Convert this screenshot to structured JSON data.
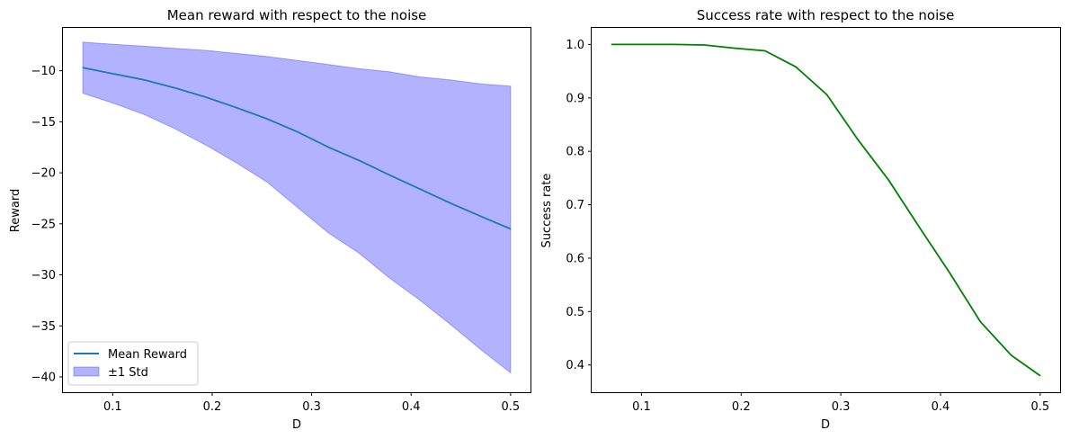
{
  "chart_data": [
    {
      "type": "line",
      "title": "Mean reward with respect to the noise",
      "xlabel": "D",
      "ylabel": "Reward",
      "xlim": [
        0.05,
        0.52
      ],
      "ylim": [
        -41.5,
        -5.8
      ],
      "xticks": [
        0.1,
        0.2,
        0.3,
        0.4,
        0.5
      ],
      "xtick_labels": [
        "0.1",
        "0.2",
        "0.3",
        "0.4",
        "0.5"
      ],
      "yticks": [
        -40,
        -35,
        -30,
        -25,
        -20,
        -15,
        -10
      ],
      "ytick_labels": [
        "−40",
        "−35",
        "−30",
        "−25",
        "−20",
        "−15",
        "−10"
      ],
      "grid": false,
      "legend_position": "lower-left",
      "x": [
        0.07,
        0.101,
        0.132,
        0.163,
        0.194,
        0.224,
        0.255,
        0.286,
        0.317,
        0.348,
        0.378,
        0.409,
        0.44,
        0.471,
        0.5
      ],
      "series": [
        {
          "name": "Mean Reward",
          "color": "#1f77b4",
          "values": [
            -9.7,
            -10.3,
            -10.9,
            -11.7,
            -12.6,
            -13.6,
            -14.7,
            -16.0,
            -17.5,
            -18.8,
            -20.2,
            -21.6,
            -23.0,
            -24.3,
            -25.5
          ]
        }
      ],
      "band": {
        "name": "±1 Std",
        "color": "#0000ff",
        "lower": [
          -12.2,
          -13.2,
          -14.3,
          -15.7,
          -17.3,
          -19.0,
          -20.9,
          -23.4,
          -25.9,
          -27.9,
          -30.3,
          -32.5,
          -34.9,
          -37.4,
          -39.6
        ],
        "upper": [
          -7.2,
          -7.4,
          -7.6,
          -7.8,
          -8.0,
          -8.3,
          -8.6,
          -9.0,
          -9.4,
          -9.8,
          -10.1,
          -10.6,
          -10.9,
          -11.3,
          -11.5
        ]
      }
    },
    {
      "type": "line",
      "title": "Success rate with respect to the noise",
      "xlabel": "D",
      "ylabel": "Success rate",
      "xlim": [
        0.05,
        0.52
      ],
      "ylim": [
        0.349,
        1.031
      ],
      "xticks": [
        0.1,
        0.2,
        0.3,
        0.4,
        0.5
      ],
      "xtick_labels": [
        "0.1",
        "0.2",
        "0.3",
        "0.4",
        "0.5"
      ],
      "yticks": [
        0.4,
        0.5,
        0.6,
        0.7,
        0.8,
        0.9,
        1.0
      ],
      "ytick_labels": [
        "0.4",
        "0.5",
        "0.6",
        "0.7",
        "0.8",
        "0.9",
        "1.0"
      ],
      "grid": false,
      "x": [
        0.07,
        0.101,
        0.132,
        0.163,
        0.194,
        0.224,
        0.255,
        0.286,
        0.317,
        0.348,
        0.378,
        0.409,
        0.44,
        0.471,
        0.5
      ],
      "series": [
        {
          "name": "",
          "color": "#008000",
          "values": [
            1.0,
            1.0,
            1.0,
            0.999,
            0.993,
            0.988,
            0.958,
            0.906,
            0.822,
            0.746,
            0.66,
            0.573,
            0.481,
            0.418,
            0.38
          ]
        }
      ]
    }
  ]
}
